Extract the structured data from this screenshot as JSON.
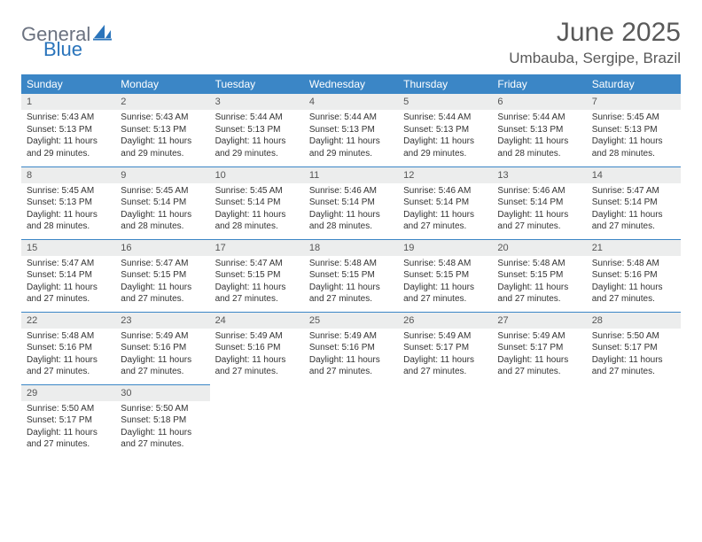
{
  "logo": {
    "text_gray": "General",
    "text_blue": "Blue"
  },
  "title": "June 2025",
  "location": "Umbauba, Sergipe, Brazil",
  "colors": {
    "header_bg": "#3b86c6",
    "header_fg": "#ffffff",
    "daynum_bg": "#eceded",
    "daynum_fg": "#555555",
    "body_fg": "#333333",
    "rule": "#3b86c6",
    "title_fg": "#595959"
  },
  "weekdays": [
    "Sunday",
    "Monday",
    "Tuesday",
    "Wednesday",
    "Thursday",
    "Friday",
    "Saturday"
  ],
  "weeks": [
    [
      {
        "n": "1",
        "sr": "5:43 AM",
        "ss": "5:13 PM",
        "dl": "11 hours and 29 minutes."
      },
      {
        "n": "2",
        "sr": "5:43 AM",
        "ss": "5:13 PM",
        "dl": "11 hours and 29 minutes."
      },
      {
        "n": "3",
        "sr": "5:44 AM",
        "ss": "5:13 PM",
        "dl": "11 hours and 29 minutes."
      },
      {
        "n": "4",
        "sr": "5:44 AM",
        "ss": "5:13 PM",
        "dl": "11 hours and 29 minutes."
      },
      {
        "n": "5",
        "sr": "5:44 AM",
        "ss": "5:13 PM",
        "dl": "11 hours and 29 minutes."
      },
      {
        "n": "6",
        "sr": "5:44 AM",
        "ss": "5:13 PM",
        "dl": "11 hours and 28 minutes."
      },
      {
        "n": "7",
        "sr": "5:45 AM",
        "ss": "5:13 PM",
        "dl": "11 hours and 28 minutes."
      }
    ],
    [
      {
        "n": "8",
        "sr": "5:45 AM",
        "ss": "5:13 PM",
        "dl": "11 hours and 28 minutes."
      },
      {
        "n": "9",
        "sr": "5:45 AM",
        "ss": "5:14 PM",
        "dl": "11 hours and 28 minutes."
      },
      {
        "n": "10",
        "sr": "5:45 AM",
        "ss": "5:14 PM",
        "dl": "11 hours and 28 minutes."
      },
      {
        "n": "11",
        "sr": "5:46 AM",
        "ss": "5:14 PM",
        "dl": "11 hours and 28 minutes."
      },
      {
        "n": "12",
        "sr": "5:46 AM",
        "ss": "5:14 PM",
        "dl": "11 hours and 27 minutes."
      },
      {
        "n": "13",
        "sr": "5:46 AM",
        "ss": "5:14 PM",
        "dl": "11 hours and 27 minutes."
      },
      {
        "n": "14",
        "sr": "5:47 AM",
        "ss": "5:14 PM",
        "dl": "11 hours and 27 minutes."
      }
    ],
    [
      {
        "n": "15",
        "sr": "5:47 AM",
        "ss": "5:14 PM",
        "dl": "11 hours and 27 minutes."
      },
      {
        "n": "16",
        "sr": "5:47 AM",
        "ss": "5:15 PM",
        "dl": "11 hours and 27 minutes."
      },
      {
        "n": "17",
        "sr": "5:47 AM",
        "ss": "5:15 PM",
        "dl": "11 hours and 27 minutes."
      },
      {
        "n": "18",
        "sr": "5:48 AM",
        "ss": "5:15 PM",
        "dl": "11 hours and 27 minutes."
      },
      {
        "n": "19",
        "sr": "5:48 AM",
        "ss": "5:15 PM",
        "dl": "11 hours and 27 minutes."
      },
      {
        "n": "20",
        "sr": "5:48 AM",
        "ss": "5:15 PM",
        "dl": "11 hours and 27 minutes."
      },
      {
        "n": "21",
        "sr": "5:48 AM",
        "ss": "5:16 PM",
        "dl": "11 hours and 27 minutes."
      }
    ],
    [
      {
        "n": "22",
        "sr": "5:48 AM",
        "ss": "5:16 PM",
        "dl": "11 hours and 27 minutes."
      },
      {
        "n": "23",
        "sr": "5:49 AM",
        "ss": "5:16 PM",
        "dl": "11 hours and 27 minutes."
      },
      {
        "n": "24",
        "sr": "5:49 AM",
        "ss": "5:16 PM",
        "dl": "11 hours and 27 minutes."
      },
      {
        "n": "25",
        "sr": "5:49 AM",
        "ss": "5:16 PM",
        "dl": "11 hours and 27 minutes."
      },
      {
        "n": "26",
        "sr": "5:49 AM",
        "ss": "5:17 PM",
        "dl": "11 hours and 27 minutes."
      },
      {
        "n": "27",
        "sr": "5:49 AM",
        "ss": "5:17 PM",
        "dl": "11 hours and 27 minutes."
      },
      {
        "n": "28",
        "sr": "5:50 AM",
        "ss": "5:17 PM",
        "dl": "11 hours and 27 minutes."
      }
    ],
    [
      {
        "n": "29",
        "sr": "5:50 AM",
        "ss": "5:17 PM",
        "dl": "11 hours and 27 minutes."
      },
      {
        "n": "30",
        "sr": "5:50 AM",
        "ss": "5:18 PM",
        "dl": "11 hours and 27 minutes."
      },
      null,
      null,
      null,
      null,
      null
    ]
  ],
  "labels": {
    "sunrise": "Sunrise:",
    "sunset": "Sunset:",
    "daylight": "Daylight:"
  }
}
